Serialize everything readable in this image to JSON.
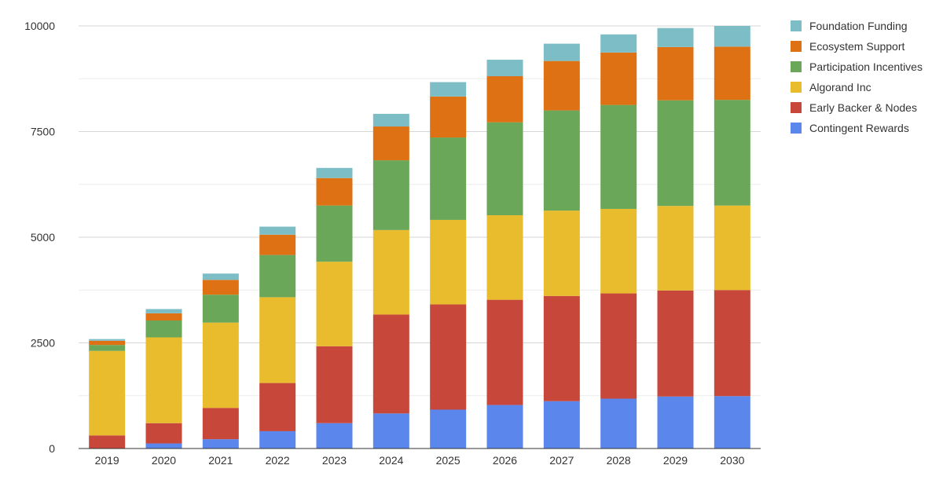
{
  "chart_data": {
    "type": "bar",
    "stacked": true,
    "categories": [
      "2019",
      "2020",
      "2021",
      "2022",
      "2023",
      "2024",
      "2025",
      "2026",
      "2027",
      "2028",
      "2029",
      "2030"
    ],
    "ylim": [
      0,
      10000
    ],
    "yticks": [
      0,
      2500,
      5000,
      7500,
      10000
    ],
    "grid": true,
    "legend_position": "right",
    "series": [
      {
        "name": "Contingent Rewards",
        "color": "#5b86ec",
        "values": [
          0,
          120,
          220,
          410,
          600,
          830,
          920,
          1030,
          1120,
          1180,
          1230,
          1240
        ]
      },
      {
        "name": "Early Backer & Nodes",
        "color": "#c8473b",
        "values": [
          310,
          480,
          740,
          1140,
          1820,
          2340,
          2490,
          2490,
          2490,
          2490,
          2510,
          2510
        ]
      },
      {
        "name": "Algorand Inc",
        "color": "#e9bc2e",
        "values": [
          2000,
          2030,
          2020,
          2030,
          2000,
          2000,
          2000,
          2000,
          2020,
          2000,
          2000,
          2000
        ]
      },
      {
        "name": "Participation Incentives",
        "color": "#6aa758",
        "values": [
          140,
          400,
          660,
          1000,
          1330,
          1650,
          1950,
          2200,
          2370,
          2460,
          2500,
          2500
        ]
      },
      {
        "name": "Ecosystem Support",
        "color": "#df7115",
        "values": [
          100,
          170,
          350,
          480,
          650,
          800,
          970,
          1090,
          1170,
          1240,
          1260,
          1260
        ]
      },
      {
        "name": "Foundation Funding",
        "color": "#7dbec6",
        "values": [
          40,
          100,
          150,
          190,
          240,
          300,
          340,
          390,
          410,
          430,
          450,
          490
        ]
      }
    ]
  }
}
